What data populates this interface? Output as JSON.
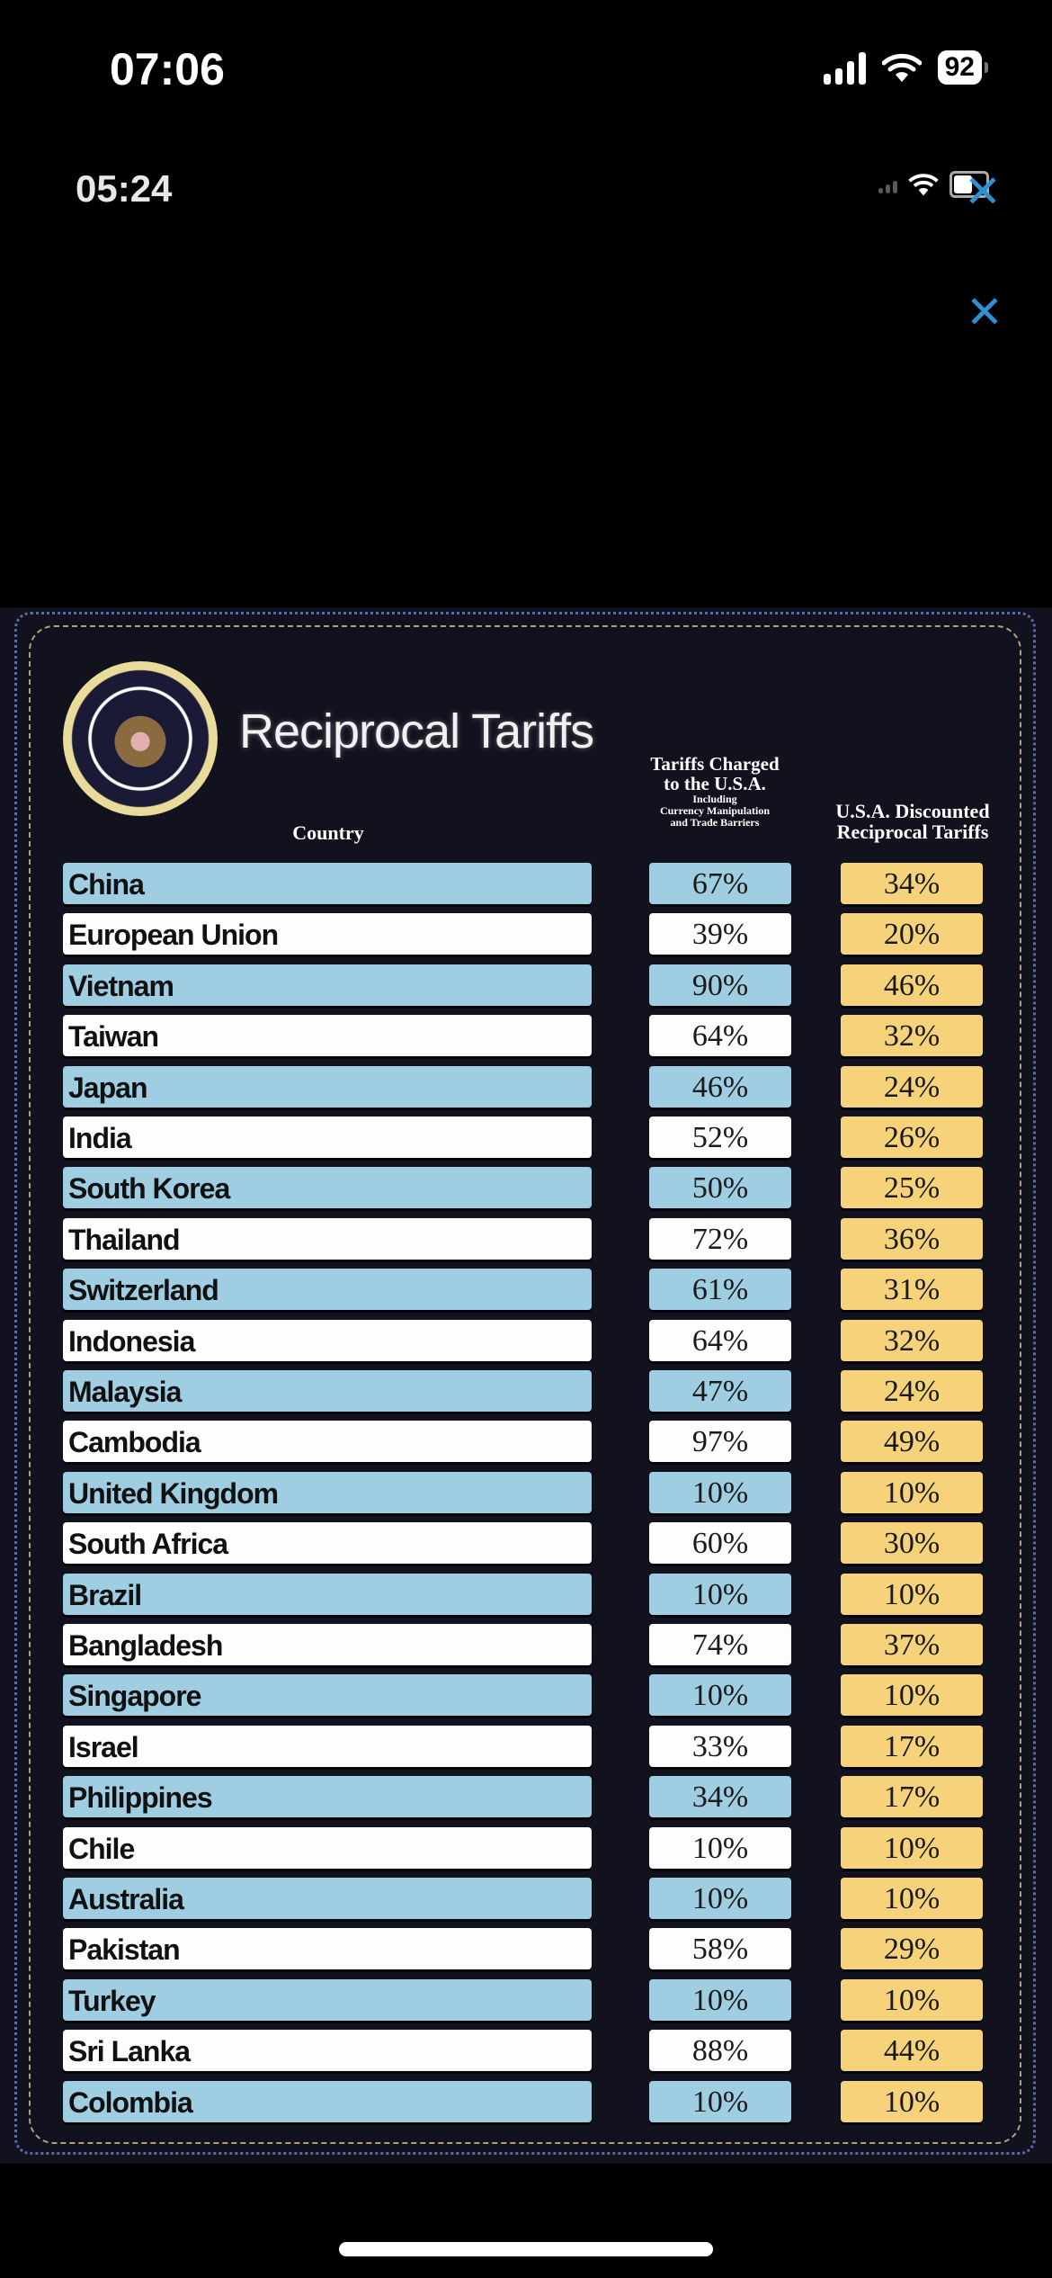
{
  "status_bar": {
    "time": "07:06",
    "battery": "92",
    "icons": [
      "signal-icon",
      "wifi-icon",
      "battery-icon"
    ]
  },
  "embedded_screenshot": {
    "time": "05:24",
    "icons": [
      "signal-icon",
      "wifi-icon",
      "battery-icon"
    ]
  },
  "viewer": {
    "close_icon": "close-icon",
    "close_glyph": "✕",
    "accent_color": "#2f8fd3"
  },
  "infographic": {
    "title": "Reciprocal Tariffs",
    "seal": "presidential-seal",
    "headers": {
      "country": "Country",
      "charged_line1": "Tariffs Charged",
      "charged_line2": "to the U.S.A.",
      "charged_note1": "Including",
      "charged_note2": "Currency Manipulation",
      "charged_note3": "and Trade Barriers",
      "discounted_line1": "U.S.A. Discounted",
      "discounted_line2": "Reciprocal Tariffs"
    },
    "colors": {
      "background": "#12121f",
      "row_blue": "#9fcde2",
      "row_white": "#fdfdfd",
      "discount_yellow": "#f6d37a"
    },
    "rows": [
      {
        "country": "China",
        "charged": "67%",
        "discounted": "34%"
      },
      {
        "country": "European Union",
        "charged": "39%",
        "discounted": "20%"
      },
      {
        "country": "Vietnam",
        "charged": "90%",
        "discounted": "46%"
      },
      {
        "country": "Taiwan",
        "charged": "64%",
        "discounted": "32%"
      },
      {
        "country": "Japan",
        "charged": "46%",
        "discounted": "24%"
      },
      {
        "country": "India",
        "charged": "52%",
        "discounted": "26%"
      },
      {
        "country": "South Korea",
        "charged": "50%",
        "discounted": "25%"
      },
      {
        "country": "Thailand",
        "charged": "72%",
        "discounted": "36%"
      },
      {
        "country": "Switzerland",
        "charged": "61%",
        "discounted": "31%"
      },
      {
        "country": "Indonesia",
        "charged": "64%",
        "discounted": "32%"
      },
      {
        "country": "Malaysia",
        "charged": "47%",
        "discounted": "24%"
      },
      {
        "country": "Cambodia",
        "charged": "97%",
        "discounted": "49%"
      },
      {
        "country": "United Kingdom",
        "charged": "10%",
        "discounted": "10%"
      },
      {
        "country": "South Africa",
        "charged": "60%",
        "discounted": "30%"
      },
      {
        "country": "Brazil",
        "charged": "10%",
        "discounted": "10%"
      },
      {
        "country": "Bangladesh",
        "charged": "74%",
        "discounted": "37%"
      },
      {
        "country": "Singapore",
        "charged": "10%",
        "discounted": "10%"
      },
      {
        "country": "Israel",
        "charged": "33%",
        "discounted": "17%"
      },
      {
        "country": "Philippines",
        "charged": "34%",
        "discounted": "17%"
      },
      {
        "country": "Chile",
        "charged": "10%",
        "discounted": "10%"
      },
      {
        "country": "Australia",
        "charged": "10%",
        "discounted": "10%"
      },
      {
        "country": "Pakistan",
        "charged": "58%",
        "discounted": "29%"
      },
      {
        "country": "Turkey",
        "charged": "10%",
        "discounted": "10%"
      },
      {
        "country": "Sri Lanka",
        "charged": "88%",
        "discounted": "44%"
      },
      {
        "country": "Colombia",
        "charged": "10%",
        "discounted": "10%"
      }
    ]
  }
}
